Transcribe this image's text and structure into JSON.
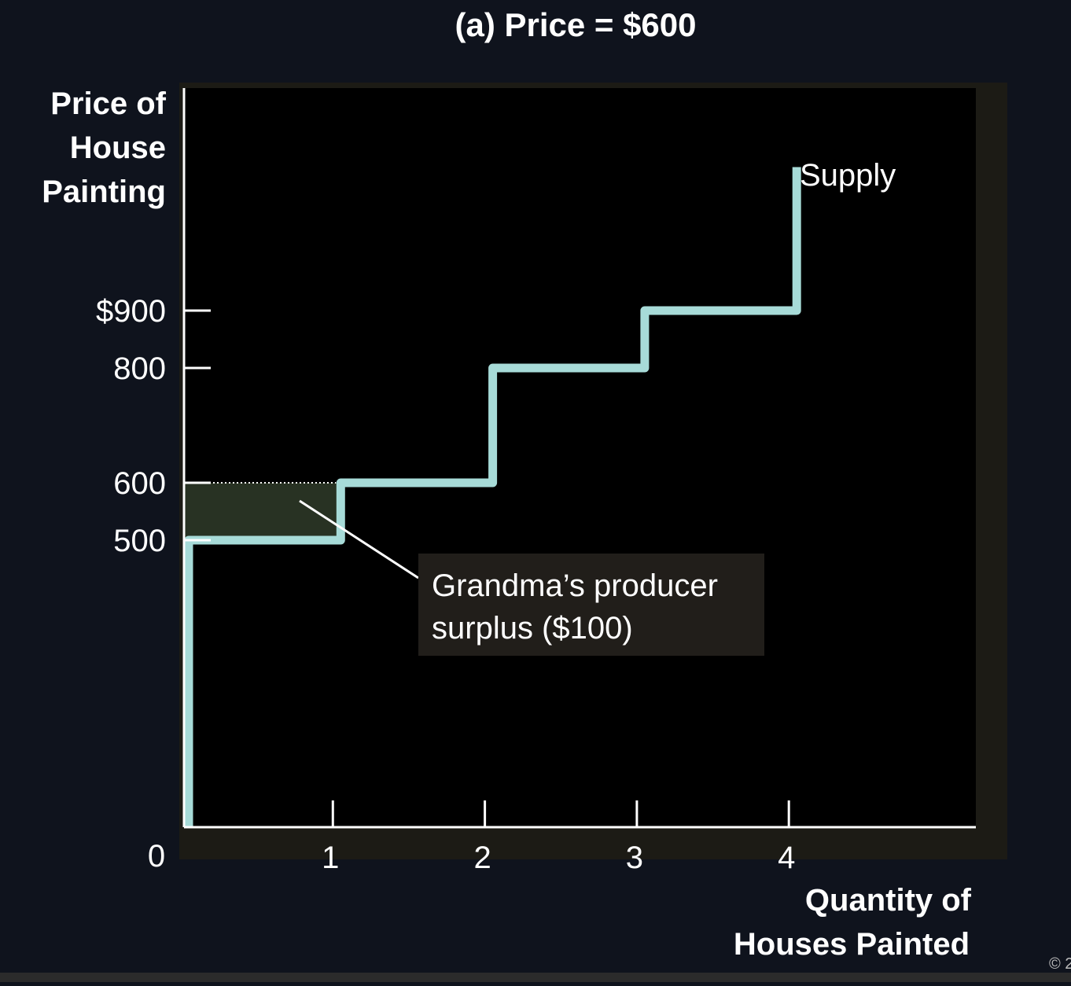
{
  "chart_data": {
    "type": "line",
    "title": "(a) Price = $600",
    "ylabel": [
      "Price of",
      "House",
      "Painting"
    ],
    "xlabel": [
      "Quantity of",
      "Houses Painted"
    ],
    "origin_label": "0",
    "x_ticks": [
      {
        "value": 1,
        "label": "1"
      },
      {
        "value": 2,
        "label": "2"
      },
      {
        "value": 3,
        "label": "3"
      },
      {
        "value": 4,
        "label": "4"
      }
    ],
    "y_ticks": [
      {
        "value": 900,
        "label": "$900"
      },
      {
        "value": 800,
        "label": "800"
      },
      {
        "value": 600,
        "label": "600"
      },
      {
        "value": 500,
        "label": "500"
      }
    ],
    "xlim": [
      0,
      5.2
    ],
    "ylim": [
      0,
      1150
    ],
    "series": [
      {
        "name": "Supply",
        "step_points": [
          [
            0,
            0
          ],
          [
            0,
            500
          ],
          [
            1,
            500
          ],
          [
            1,
            600
          ],
          [
            2,
            600
          ],
          [
            2,
            800
          ],
          [
            3,
            800
          ],
          [
            3,
            900
          ],
          [
            4,
            900
          ],
          [
            4,
            1150
          ]
        ]
      }
    ],
    "price_line": {
      "value": 600,
      "from_x": 0,
      "to_x": 1
    },
    "surplus_area": {
      "x0": 0,
      "x1": 1,
      "y0": 500,
      "y1": 600
    },
    "annotation": {
      "lines": [
        "Grandma’s producer",
        "surplus ($100)"
      ]
    },
    "colors": {
      "background": "#0f131d",
      "plot_background": "#000000",
      "plot_shadow": "#1c1b15",
      "supply": "#a7dbd8",
      "surplus_fill": "#283223",
      "annotation_box": "#211e1a",
      "axis": "#ffffff"
    }
  },
  "copyright_fragment": "© 2"
}
